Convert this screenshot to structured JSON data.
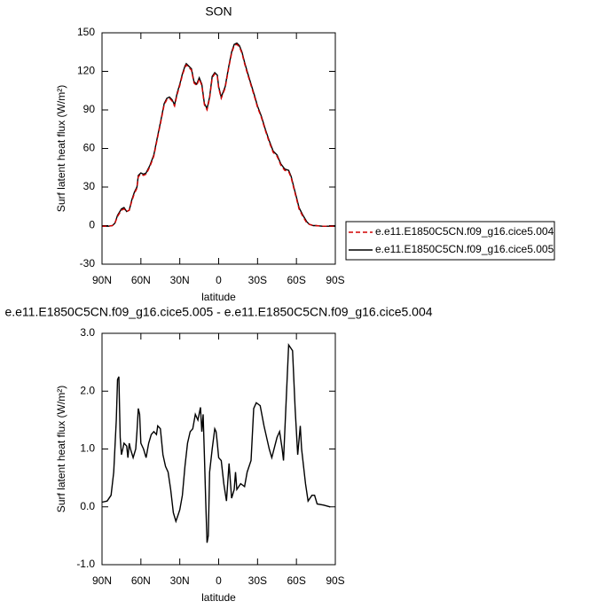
{
  "chart_data": [
    {
      "type": "line",
      "title": "SON",
      "xlabel": "latitude",
      "ylabel": "Surf latent heat flux (W/m²)",
      "xlim": [
        90,
        -90
      ],
      "xticks": [
        {
          "value": 90,
          "label": "90N"
        },
        {
          "value": 60,
          "label": "60N"
        },
        {
          "value": 30,
          "label": "30N"
        },
        0,
        {
          "value": -30,
          "label": "30S"
        },
        {
          "value": -60,
          "label": "60S"
        },
        {
          "value": -90,
          "label": "90S"
        }
      ],
      "ylim": [
        -30,
        150
      ],
      "yticks": [
        -30,
        0,
        30,
        60,
        90,
        120,
        150
      ],
      "legend": "outside-right",
      "x": [
        90,
        85,
        82,
        80,
        78,
        75,
        73,
        71,
        69,
        67,
        65,
        63,
        62,
        60,
        58,
        56,
        53,
        50,
        47,
        45,
        42,
        40,
        38,
        36,
        34,
        32,
        30,
        28,
        26,
        25,
        23,
        21,
        19,
        17,
        15,
        13,
        11,
        9,
        7,
        5,
        3,
        1,
        0,
        -2,
        -5,
        -8,
        -10,
        -12,
        -14,
        -16,
        -18,
        -20,
        -22,
        -25,
        -28,
        -30,
        -33,
        -36,
        -39,
        -42,
        -45,
        -48,
        -51,
        -54,
        -56,
        -58,
        -60,
        -62,
        -65,
        -68,
        -70,
        -73,
        -75,
        -80,
        -90
      ],
      "series": [
        {
          "name": "e.e11.E1850C5CN.f09_g16.cice5.004",
          "color": "#d40000",
          "line_style": "dashed",
          "values": [
            -0.5,
            -0.5,
            0,
            2,
            7,
            12,
            13,
            11,
            12,
            19,
            25,
            29,
            38,
            40,
            39,
            40,
            46,
            54,
            69,
            79,
            94,
            98,
            99,
            97,
            93,
            102,
            109,
            117,
            123,
            125,
            123,
            121,
            111,
            109,
            114,
            109,
            94,
            90,
            99,
            115,
            118,
            116,
            107,
            99,
            107,
            124,
            134,
            140,
            141,
            139,
            134,
            126,
            119,
            109,
            99,
            92,
            84,
            74,
            65,
            57,
            54,
            47,
            43,
            42,
            37,
            29,
            21,
            13,
            7,
            2,
            1,
            0,
            0,
            -0.5,
            -0.5
          ]
        },
        {
          "name": "e.e11.E1850C5CN.f09_g16.cice5.005",
          "color": "#000000",
          "line_style": "solid",
          "values": [
            -0.5,
            -0.5,
            0,
            2,
            8,
            13,
            14,
            11,
            12,
            20,
            26,
            30,
            39,
            41,
            40,
            41,
            47,
            55,
            70,
            80,
            95,
            99,
            100,
            98,
            94,
            103,
            110,
            118,
            124,
            126,
            124,
            122,
            112,
            110,
            115,
            110,
            95,
            91,
            100,
            116,
            119,
            117,
            108,
            100,
            108,
            125,
            135,
            141,
            142,
            140,
            135,
            127,
            120,
            110,
            100,
            93,
            85,
            75,
            66,
            58,
            55,
            48,
            44,
            43,
            38,
            30,
            22,
            14,
            8,
            3,
            1,
            0,
            0,
            -0.5,
            -0.5
          ]
        }
      ]
    },
    {
      "type": "line",
      "title": "e.e11.E1850C5CN.f09_g16.cice5.005 - e.e11.E1850C5CN.f09_g16.cice5.004",
      "xlabel": "latitude",
      "ylabel": "Surf latent heat flux (W/m²)",
      "xlim": [
        90,
        -90
      ],
      "xticks": [
        {
          "value": 90,
          "label": "90N"
        },
        {
          "value": 60,
          "label": "60N"
        },
        {
          "value": 30,
          "label": "30N"
        },
        0,
        {
          "value": -30,
          "label": "30S"
        },
        {
          "value": -60,
          "label": "60S"
        },
        {
          "value": -90,
          "label": "90S"
        }
      ],
      "ylim": [
        -1,
        3
      ],
      "yticks": [
        {
          "value": -1,
          "label": "-1.0"
        },
        {
          "value": 0,
          "label": "0.0"
        },
        {
          "value": 1,
          "label": "1.0"
        },
        {
          "value": 2,
          "label": "2.0"
        },
        {
          "value": 3,
          "label": "3.0"
        }
      ],
      "color": "#000000",
      "x": [
        90,
        86,
        83,
        81,
        79,
        78,
        77,
        76,
        75,
        74,
        73,
        71,
        70,
        69,
        68,
        66,
        64,
        63,
        62,
        61,
        60,
        58,
        56,
        54,
        52,
        50,
        48,
        47,
        45,
        43,
        41,
        39,
        37,
        35,
        33,
        31,
        30,
        28,
        26,
        24,
        22,
        20,
        18,
        16,
        14,
        13,
        12,
        11,
        10,
        9,
        8,
        7,
        5,
        3,
        2,
        1,
        0,
        -2,
        -4,
        -6,
        -8,
        -10,
        -12,
        -13,
        -14,
        -17,
        -20,
        -22,
        -25,
        -27,
        -29,
        -32,
        -35,
        -39,
        -41,
        -45,
        -47,
        -49,
        -50,
        -52,
        -54,
        -57,
        -59,
        -61,
        -63,
        -64,
        -67,
        -69,
        -72,
        -74,
        -76,
        -81,
        -86
      ],
      "values": [
        0.08,
        0.1,
        0.2,
        0.6,
        1.5,
        2.2,
        2.25,
        1.2,
        0.9,
        1.0,
        1.1,
        1.05,
        0.85,
        1.1,
        1.0,
        0.85,
        1.0,
        1.3,
        1.7,
        1.6,
        1.1,
        1.0,
        0.85,
        1.1,
        1.25,
        1.3,
        1.25,
        1.4,
        1.35,
        0.9,
        0.7,
        0.6,
        0.3,
        -0.1,
        -0.25,
        -0.12,
        -0.05,
        0.2,
        0.7,
        1.1,
        1.3,
        1.35,
        1.6,
        1.5,
        1.72,
        1.3,
        1.6,
        0.9,
        0.1,
        -0.62,
        -0.5,
        0.6,
        1.0,
        1.35,
        1.3,
        1.1,
        0.85,
        0.8,
        0.4,
        0.1,
        0.75,
        0.15,
        0.3,
        0.6,
        0.3,
        0.4,
        0.35,
        0.6,
        0.8,
        1.7,
        1.8,
        1.75,
        1.4,
        1.0,
        0.85,
        1.2,
        1.3,
        1.0,
        0.8,
        1.8,
        2.8,
        2.7,
        1.7,
        0.9,
        1.4,
        1.0,
        0.4,
        0.1,
        0.2,
        0.2,
        0.05,
        0.03,
        0.0
      ]
    }
  ]
}
